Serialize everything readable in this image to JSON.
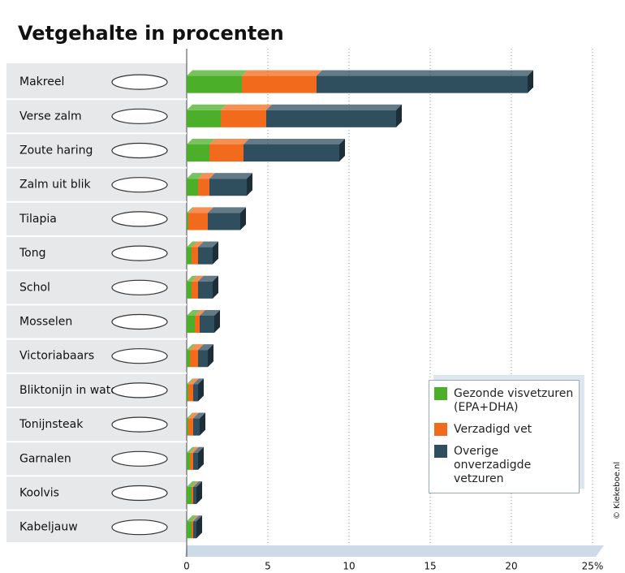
{
  "chart_data": {
    "type": "bar",
    "orientation": "horizontal",
    "stacked": true,
    "title": "Vetgehalte in procenten",
    "categories": [
      "Makreel",
      "Verse zalm",
      "Zoute haring",
      "Zalm uit blik",
      "Tilapia",
      "Tong",
      "Schol",
      "Mosselen",
      "Victoriabaars",
      "Bliktonijn in water",
      "Tonijnsteak",
      "Garnalen",
      "Koolvis",
      "Kabeljauw"
    ],
    "series": [
      {
        "name": "Gezonde visvetzuren (EPA+DHA)",
        "color": "#4caf2a",
        "values": [
          3.4,
          2.1,
          1.4,
          0.7,
          0.1,
          0.3,
          0.3,
          0.5,
          0.2,
          0.1,
          0.1,
          0.2,
          0.3,
          0.3
        ]
      },
      {
        "name": "Verzadigd vet",
        "color": "#f26a1b",
        "values": [
          4.6,
          2.8,
          2.1,
          0.7,
          1.2,
          0.4,
          0.4,
          0.3,
          0.5,
          0.3,
          0.3,
          0.2,
          0.1,
          0.1
        ]
      },
      {
        "name": "Overige onverzadigde vetzuren",
        "color": "#2f4f5f",
        "values": [
          13,
          8.0,
          5.9,
          2.3,
          2.0,
          0.9,
          0.9,
          0.9,
          0.6,
          0.3,
          0.4,
          0.3,
          0.2,
          0.2
        ]
      }
    ],
    "xlim": [
      0,
      25
    ],
    "xticks": [
      0,
      5,
      10,
      15,
      20,
      {
        "value": 25,
        "label": "25%"
      }
    ],
    "grid": true,
    "credit": "© Kiekeboe.nl"
  }
}
